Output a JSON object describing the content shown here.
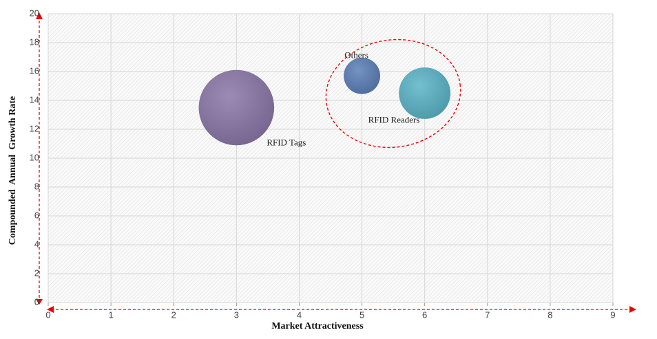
{
  "chart_data": {
    "type": "bubble",
    "xlabel": "Market Attractiveness",
    "ylabel": "Compounded  Annual  Growth Rate",
    "xlim": [
      0,
      9
    ],
    "xticks": [
      0,
      1,
      2,
      3,
      4,
      5,
      6,
      7,
      8,
      9
    ],
    "ylim": [
      0,
      20
    ],
    "yticks": [
      0,
      2,
      4,
      6,
      8,
      10,
      12,
      14,
      16,
      18,
      20
    ],
    "grid": true,
    "points": [
      {
        "name": "RFID Tags",
        "x": 3,
        "y": 13.5,
        "size": 30,
        "color": "#8a77a8"
      },
      {
        "name": "Others",
        "x": 5,
        "y": 15.7,
        "size": 7,
        "color": "#5b7fb8"
      },
      {
        "name": "RFID Readers",
        "x": 6,
        "y": 14.5,
        "size": 14,
        "color": "#5ab4c8"
      }
    ]
  }
}
